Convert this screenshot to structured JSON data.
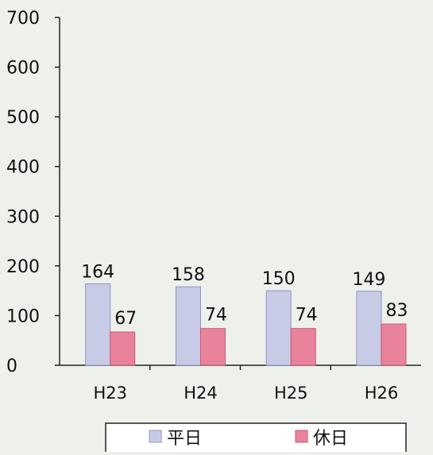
{
  "chart_data": {
    "type": "bar",
    "categories": [
      "H23",
      "H24",
      "H25",
      "H26"
    ],
    "series": [
      {
        "name": "平日",
        "values": [
          164,
          158,
          150,
          149
        ]
      },
      {
        "name": "休日",
        "values": [
          67,
          74,
          74,
          83
        ]
      }
    ],
    "ylim": [
      0,
      700
    ],
    "yticks": [
      0,
      100,
      200,
      300,
      400,
      500,
      600,
      700
    ],
    "legend_position": "bottom",
    "grid": false,
    "colors": {
      "series_1": "#c8cbe6",
      "series_2": "#e9839c"
    }
  }
}
